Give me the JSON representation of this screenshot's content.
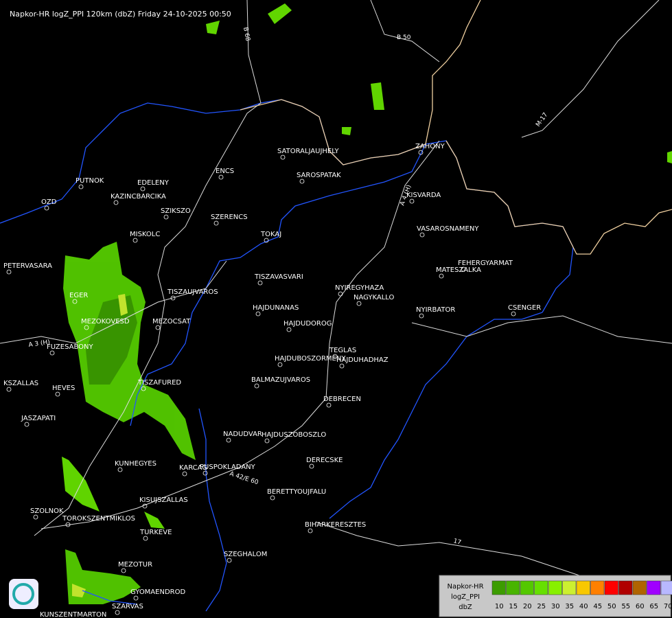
{
  "header": {
    "title": "Napkor-HR logZ_PPI 120km (dbZ) Friday 24-10-2025 00:50"
  },
  "cities": [
    "SATORALJAUJHELY",
    "SAROSPATAK",
    "ZAHONY",
    "KISVARDA",
    "VASAROSNAMENY",
    "FEHERGYARMAT",
    "MATESZALKA",
    "CSENGER",
    "NYIRBATOR",
    "NYIREGYHAZA",
    "NAGYKALLO",
    "TISZAVASVARI",
    "TOKAJ",
    "SZERENCS",
    "ENCS",
    "PUTNOK",
    "EDELENY",
    "KAZINCBARCIKA",
    "SZIKSZO",
    "OZD",
    "MISKOLC",
    "PETERVASARA",
    "EGER",
    "MEZOKOVESD",
    "MEZOCSAT",
    "TISZAUJVAROS",
    "HAJDUNANAS",
    "HAJDUDOROG",
    "FUZESABONY",
    "HAJDUBOSZORMENY",
    "TEGLAS",
    "HAJDUHADHAZ",
    "BALMAZUJVAROS",
    "TISZAFURED",
    "HEVES",
    "KSZALLAS",
    "JASZAPATI",
    "DEBRECEN",
    "NADUDVAR",
    "HAJDUSZOBOSZLO",
    "KUNHEGYES",
    "KARCAG",
    "PUSPOKLADANY",
    "DERECSKE",
    "BERETTYOUJFALU",
    "KISUJSZALLAS",
    "SZOLNOK",
    "TOROKSZENTMIKLOS",
    "BIHARKERESZTES",
    "TURKEVE",
    "SZEGHALOM",
    "MEZOTUR",
    "GYOMAENDROD",
    "SZARVAS",
    "KUNSZENTMARTON"
  ],
  "roads": [
    "B 68",
    "B 50",
    "M-17",
    "A 4 (H)",
    "A 3 (H)",
    "A 42/E 60",
    "17"
  ],
  "legend": {
    "title": [
      "Napkor-HR",
      "logZ_PPI",
      "dbZ"
    ],
    "ticks": [
      10,
      15,
      20,
      25,
      30,
      35,
      40,
      45,
      50,
      55,
      60,
      65,
      70
    ],
    "colors": [
      "#3c9c00",
      "#48b400",
      "#54c800",
      "#66e000",
      "#88f000",
      "#ccf030",
      "#f8c800",
      "#ff8000",
      "#ff0000",
      "#b00000",
      "#b06400",
      "#a000ff",
      "#b8b8ff"
    ]
  }
}
